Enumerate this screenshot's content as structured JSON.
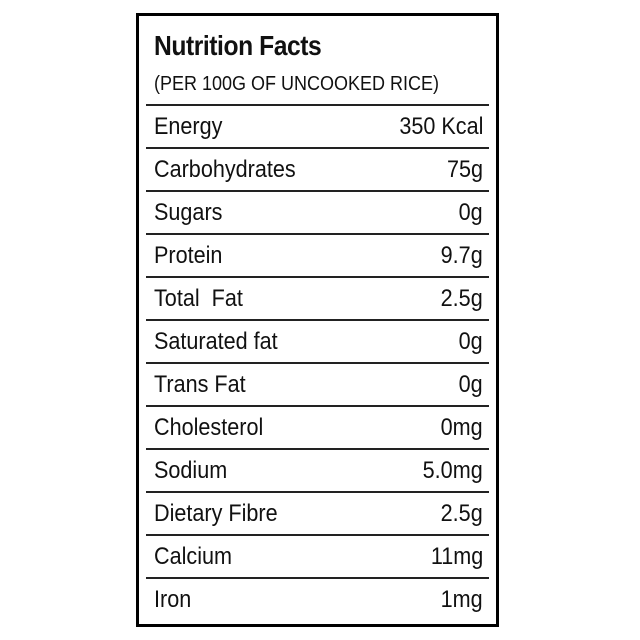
{
  "label": {
    "title": "Nutrition Facts",
    "subtitle": "(PER 100G OF UNCOOKED RICE)",
    "rows": [
      {
        "name": "Energy",
        "value": "350 Kcal"
      },
      {
        "name": "Carbohydrates",
        "value": "75g"
      },
      {
        "name": "Sugars",
        "value": "0g"
      },
      {
        "name": "Protein",
        "value": "9.7g"
      },
      {
        "name": "Total  Fat",
        "value": "2.5g"
      },
      {
        "name": "Saturated fat",
        "value": "0g"
      },
      {
        "name": "Trans Fat",
        "value": "0g"
      },
      {
        "name": "Cholesterol",
        "value": "0mg"
      },
      {
        "name": "Sodium",
        "value": "5.0mg"
      },
      {
        "name": "Dietary Fibre",
        "value": "2.5g"
      },
      {
        "name": "Calcium",
        "value": "11mg"
      },
      {
        "name": "Iron",
        "value": "1mg"
      }
    ]
  }
}
